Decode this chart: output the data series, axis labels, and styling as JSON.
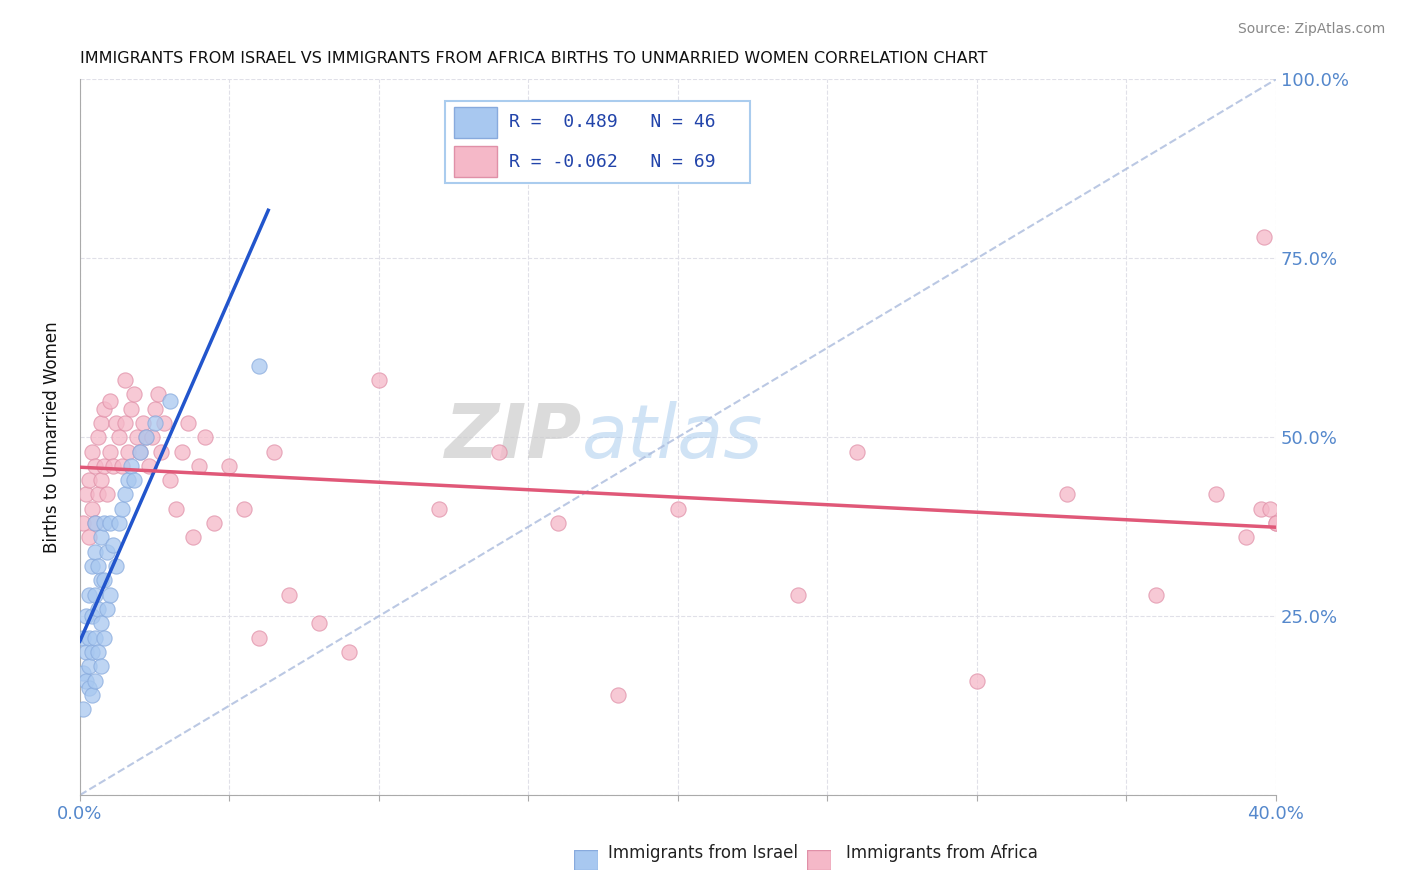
{
  "title": "IMMIGRANTS FROM ISRAEL VS IMMIGRANTS FROM AFRICA BIRTHS TO UNMARRIED WOMEN CORRELATION CHART",
  "source": "Source: ZipAtlas.com",
  "ylabel": "Births to Unmarried Women",
  "watermark_zip": "ZIP",
  "watermark_atlas": "atlas",
  "israel_color": "#a8c8f0",
  "israel_edge_color": "#88aadd",
  "africa_color": "#f5b8c8",
  "africa_edge_color": "#e090a8",
  "israel_line_color": "#2255cc",
  "africa_line_color": "#e05878",
  "diagonal_color": "#aabbdd",
  "background_color": "#ffffff",
  "grid_color": "#e0e0e8",
  "tick_color": "#5588cc",
  "title_color": "#111111",
  "ylabel_color": "#111111",
  "legend_text_color": "#2244aa",
  "legend_border_color": "#aaccee",
  "israel_scatter_x": [
    0.001,
    0.001,
    0.001,
    0.002,
    0.002,
    0.002,
    0.003,
    0.003,
    0.003,
    0.003,
    0.004,
    0.004,
    0.004,
    0.004,
    0.005,
    0.005,
    0.005,
    0.005,
    0.005,
    0.006,
    0.006,
    0.006,
    0.007,
    0.007,
    0.007,
    0.007,
    0.008,
    0.008,
    0.008,
    0.009,
    0.009,
    0.01,
    0.01,
    0.011,
    0.012,
    0.013,
    0.014,
    0.015,
    0.016,
    0.017,
    0.018,
    0.02,
    0.022,
    0.025,
    0.03,
    0.06
  ],
  "israel_scatter_y": [
    0.12,
    0.17,
    0.22,
    0.16,
    0.2,
    0.25,
    0.15,
    0.18,
    0.22,
    0.28,
    0.14,
    0.2,
    0.25,
    0.32,
    0.16,
    0.22,
    0.28,
    0.34,
    0.38,
    0.2,
    0.26,
    0.32,
    0.18,
    0.24,
    0.3,
    0.36,
    0.22,
    0.3,
    0.38,
    0.26,
    0.34,
    0.28,
    0.38,
    0.35,
    0.32,
    0.38,
    0.4,
    0.42,
    0.44,
    0.46,
    0.44,
    0.48,
    0.5,
    0.52,
    0.55,
    0.6
  ],
  "africa_scatter_x": [
    0.001,
    0.002,
    0.003,
    0.003,
    0.004,
    0.004,
    0.005,
    0.005,
    0.006,
    0.006,
    0.007,
    0.007,
    0.008,
    0.008,
    0.009,
    0.01,
    0.01,
    0.011,
    0.012,
    0.013,
    0.014,
    0.015,
    0.015,
    0.016,
    0.017,
    0.018,
    0.019,
    0.02,
    0.021,
    0.022,
    0.023,
    0.024,
    0.025,
    0.026,
    0.027,
    0.028,
    0.03,
    0.032,
    0.034,
    0.036,
    0.038,
    0.04,
    0.042,
    0.045,
    0.05,
    0.055,
    0.06,
    0.065,
    0.07,
    0.08,
    0.09,
    0.1,
    0.12,
    0.14,
    0.16,
    0.18,
    0.2,
    0.24,
    0.26,
    0.3,
    0.33,
    0.36,
    0.38,
    0.39,
    0.395,
    0.396,
    0.398,
    0.4,
    0.4
  ],
  "africa_scatter_y": [
    0.38,
    0.42,
    0.36,
    0.44,
    0.4,
    0.48,
    0.38,
    0.46,
    0.42,
    0.5,
    0.44,
    0.52,
    0.46,
    0.54,
    0.42,
    0.48,
    0.55,
    0.46,
    0.52,
    0.5,
    0.46,
    0.52,
    0.58,
    0.48,
    0.54,
    0.56,
    0.5,
    0.48,
    0.52,
    0.5,
    0.46,
    0.5,
    0.54,
    0.56,
    0.48,
    0.52,
    0.44,
    0.4,
    0.48,
    0.52,
    0.36,
    0.46,
    0.5,
    0.38,
    0.46,
    0.4,
    0.22,
    0.48,
    0.28,
    0.24,
    0.2,
    0.58,
    0.4,
    0.48,
    0.38,
    0.14,
    0.4,
    0.28,
    0.48,
    0.16,
    0.42,
    0.28,
    0.42,
    0.36,
    0.4,
    0.78,
    0.4,
    0.38,
    0.38
  ],
  "xlim": [
    0.0,
    0.4
  ],
  "ylim": [
    0.0,
    1.0
  ],
  "xtick_positions": [
    0.0,
    0.05,
    0.1,
    0.15,
    0.2,
    0.25,
    0.3,
    0.35,
    0.4
  ],
  "ytick_positions": [
    0.0,
    0.25,
    0.5,
    0.75,
    1.0
  ],
  "ytick_labels": [
    "",
    "25.0%",
    "50.0%",
    "75.0%",
    "100.0%"
  ],
  "xtick_labels_show": {
    "0.0": "0.0%",
    "0.4": "40.0%"
  },
  "legend1": "R =  0.489   N = 46",
  "legend2": "R = -0.062   N = 69",
  "bottom_label1": "Immigrants from Israel",
  "bottom_label2": "Immigrants from Africa"
}
